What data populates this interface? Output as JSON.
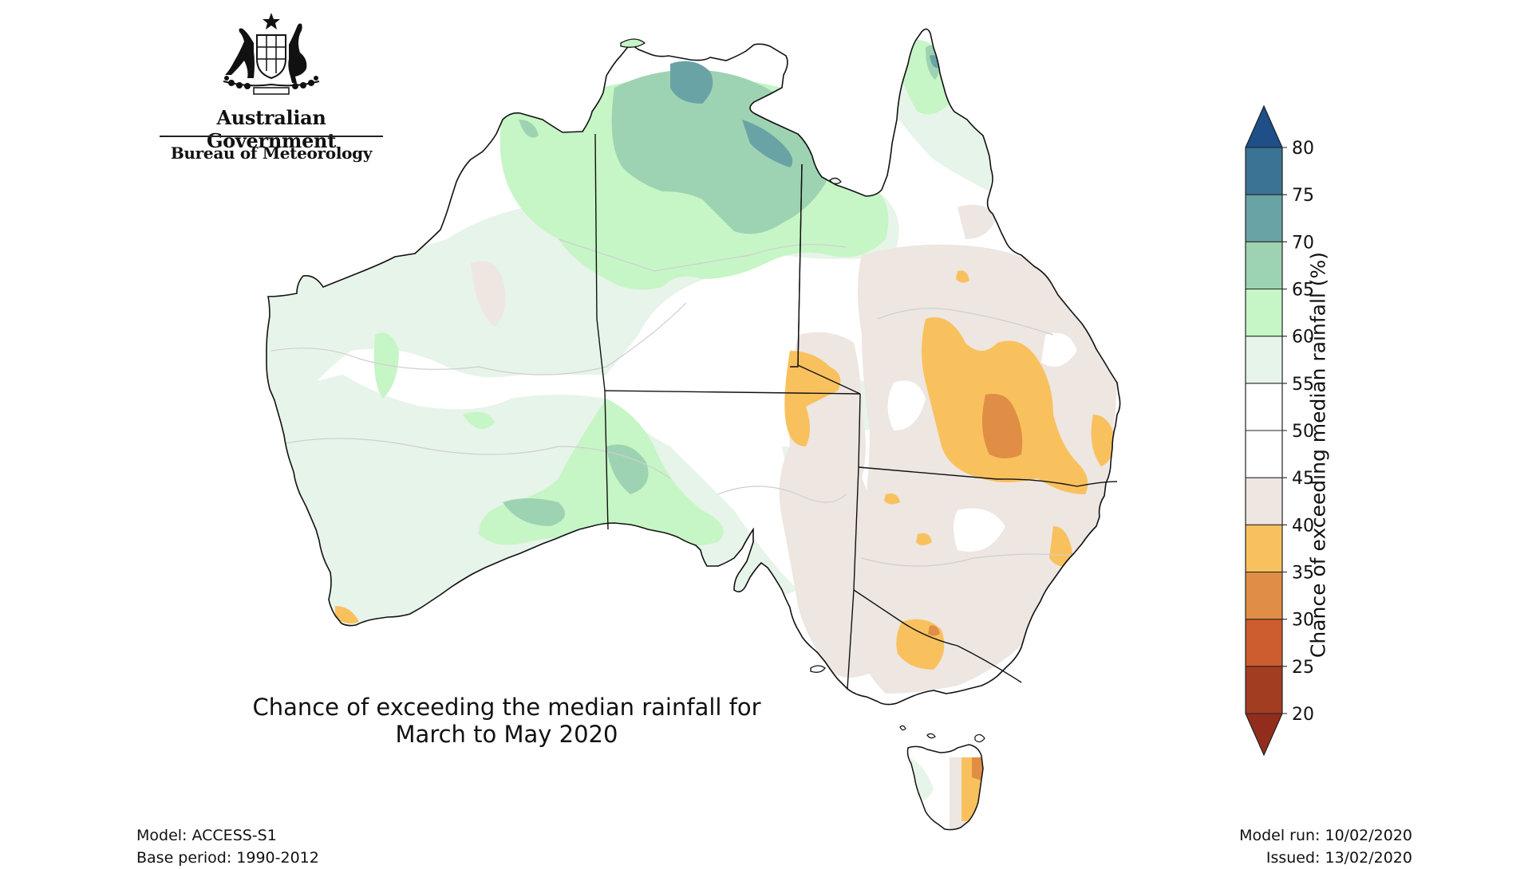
{
  "branding": {
    "government": "Australian Government",
    "bureau": "Bureau of Meteorology"
  },
  "title": {
    "line1": "Chance of exceeding the median rainfall for",
    "line2": "March to May 2020"
  },
  "footer_left": {
    "model": "Model: ACCESS-S1",
    "base_period": "Base period: 1990-2012"
  },
  "footer_right": {
    "model_run": "Model run: 10/02/2020",
    "issued": "Issued: 13/02/2020"
  },
  "colorbar": {
    "label": "Chance of exceeding median rainfall (%)",
    "ticks": [
      "20",
      "25",
      "30",
      "35",
      "40",
      "45",
      "50",
      "55",
      "60",
      "65",
      "70",
      "75",
      "80"
    ],
    "bands": [
      {
        "from": 20,
        "to": 25,
        "color": "#a33d22"
      },
      {
        "from": 25,
        "to": 30,
        "color": "#cd5c2e"
      },
      {
        "from": 30,
        "to": 35,
        "color": "#e08e45"
      },
      {
        "from": 35,
        "to": 40,
        "color": "#f9c15e"
      },
      {
        "from": 40,
        "to": 45,
        "color": "#ede6e1"
      },
      {
        "from": 45,
        "to": 50,
        "color": "#ffffff"
      },
      {
        "from": 50,
        "to": 55,
        "color": "#ffffff"
      },
      {
        "from": 55,
        "to": 60,
        "color": "#e7f4e9"
      },
      {
        "from": 60,
        "to": 65,
        "color": "#c6f5c6"
      },
      {
        "from": 65,
        "to": 70,
        "color": "#9dd3b2"
      },
      {
        "from": 70,
        "to": 75,
        "color": "#6aa3a6"
      },
      {
        "from": 75,
        "to": 80,
        "color": "#3b7394"
      }
    ],
    "under_color": "#922d1d",
    "over_color": "#1e4f88"
  },
  "map_colors": {
    "land_base": "#ffffff",
    "boundary": "#111111",
    "contour": "#c8c8c8"
  }
}
